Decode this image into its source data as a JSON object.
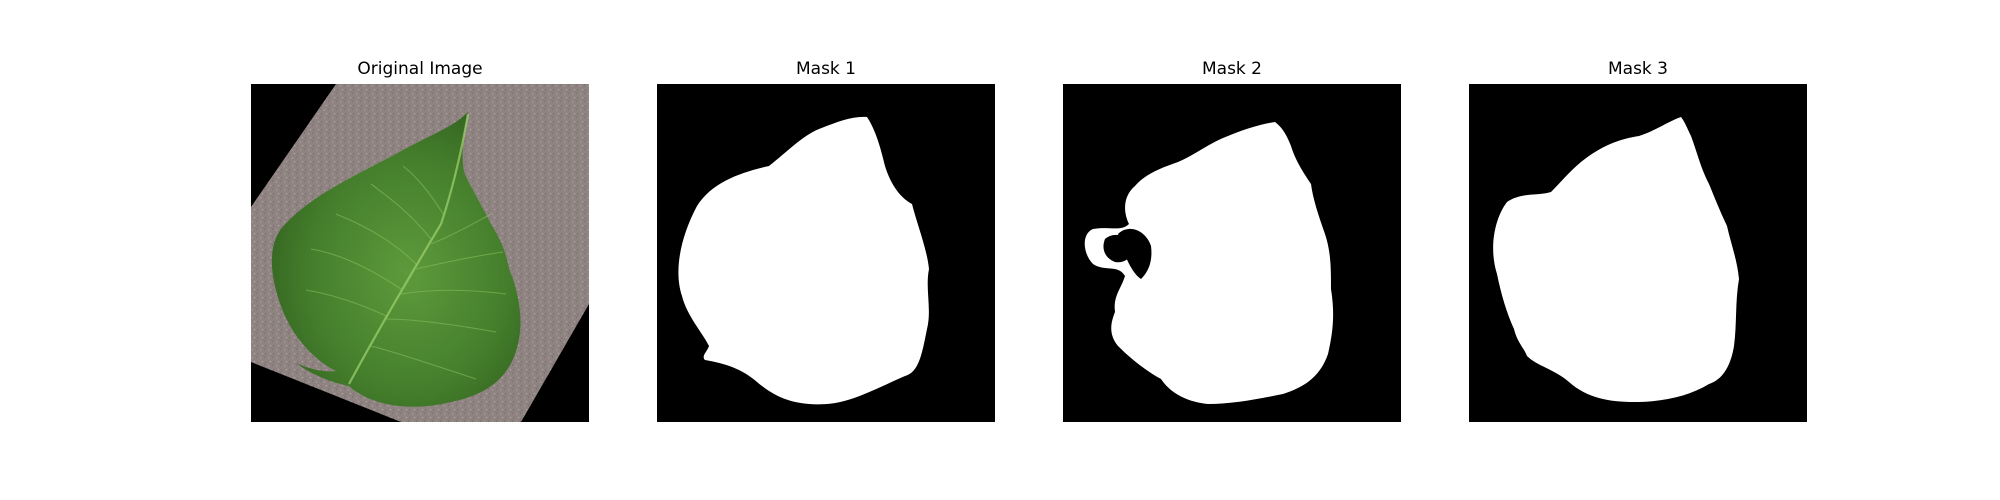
{
  "figure": {
    "background_color": "#ffffff",
    "panels": [
      {
        "title": "Original Image",
        "kind": "photo"
      },
      {
        "title": "Mask 1",
        "kind": "binary-mask"
      },
      {
        "title": "Mask 2",
        "kind": "binary-mask"
      },
      {
        "title": "Mask 3",
        "kind": "binary-mask"
      }
    ]
  },
  "colors": {
    "mask_background": "#000000",
    "mask_foreground": "#ffffff",
    "photo_background": "#000000",
    "paper": "#8d8280",
    "leaf_dark": "#2f5e1e",
    "leaf_mid": "#457f2c",
    "leaf_light": "#5e9a3c"
  }
}
